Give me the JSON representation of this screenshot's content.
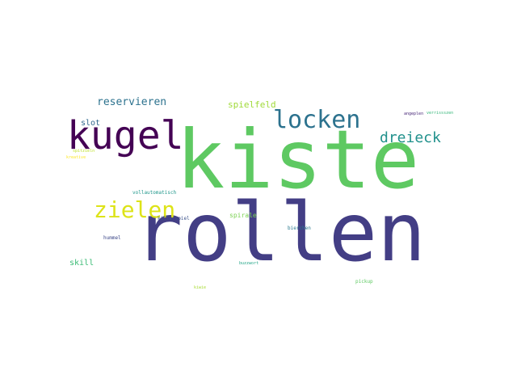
{
  "words": [
    {
      "text": "kiste",
      "color": "#5ec962",
      "weight": 1.0
    },
    {
      "text": "rollen",
      "color": "#433e85",
      "weight": 0.98
    },
    {
      "text": "kugel",
      "color": "#440154",
      "weight": 0.45
    },
    {
      "text": "locken",
      "color": "#2c728e",
      "weight": 0.28
    },
    {
      "text": "zielen",
      "color": "#dde318",
      "weight": 0.27
    },
    {
      "text": "dreieck",
      "color": "#21918c",
      "weight": 0.2
    },
    {
      "text": "reservieren",
      "color": "#2c728e",
      "weight": 0.12
    },
    {
      "text": "spielfeld",
      "color": "#a0da39",
      "weight": 0.1
    },
    {
      "text": "slot",
      "color": "#31688e",
      "weight": 0.08
    },
    {
      "text": "skill",
      "color": "#3bbb75",
      "weight": 0.08
    },
    {
      "text": "spirale",
      "color": "#7ad151",
      "weight": 0.06
    },
    {
      "text": "vollautomatisch",
      "color": "#1f978b",
      "weight": 0.05
    },
    {
      "text": "killerspiel",
      "color": "#3b528b",
      "weight": 0.05
    },
    {
      "text": "bierchen",
      "color": "#2a788e",
      "weight": 0.05
    },
    {
      "text": "hummel",
      "color": "#3e4989",
      "weight": 0.045
    },
    {
      "text": "buzzwort",
      "color": "#20a486",
      "weight": 0.04
    },
    {
      "text": "pickup",
      "color": "#5ec962",
      "weight": 0.04
    },
    {
      "text": "kiwie",
      "color": "#a8db34",
      "weight": 0.035
    },
    {
      "text": "angeplen",
      "color": "#482878",
      "weight": 0.03
    },
    {
      "text": "verrissszen",
      "color": "#35b779",
      "weight": 0.03
    },
    {
      "text": "spitzieln",
      "color": "#bddf26",
      "weight": 0.03
    },
    {
      "text": "kreative",
      "color": "#fde725",
      "weight": 0.03
    }
  ]
}
